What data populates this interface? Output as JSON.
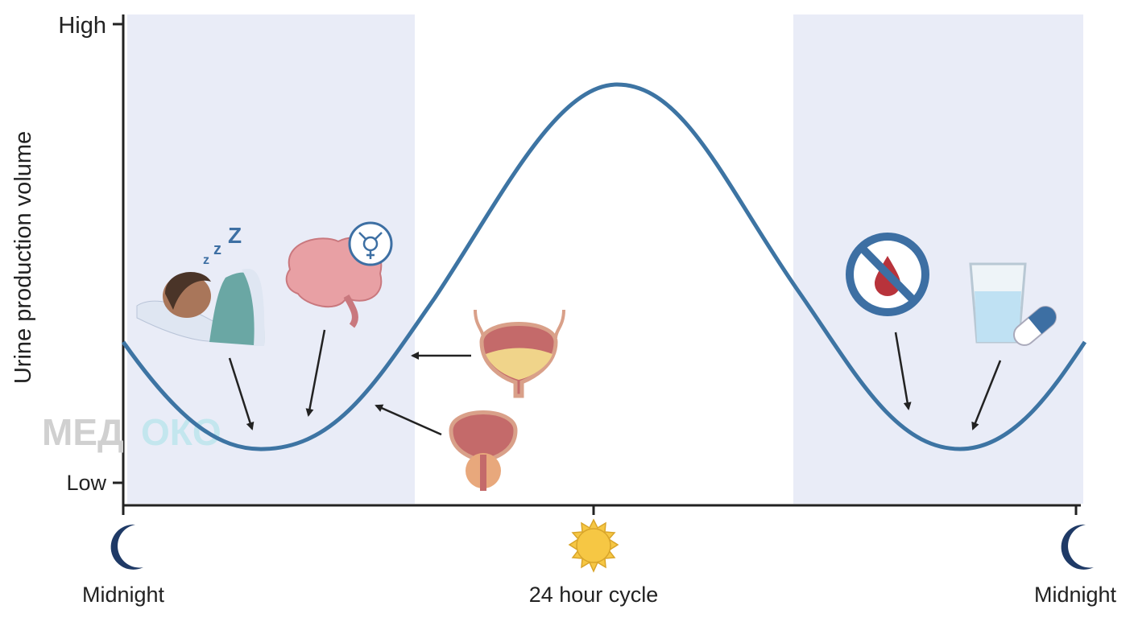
{
  "y_axis": {
    "label": "Urine production volume",
    "high": "High",
    "low": "Low"
  },
  "x_axis": {
    "start": "Midnight",
    "middle": "24 hour cycle",
    "end": "Midnight"
  },
  "watermark": {
    "left": "МЕД",
    "right": "ОКО"
  }
}
